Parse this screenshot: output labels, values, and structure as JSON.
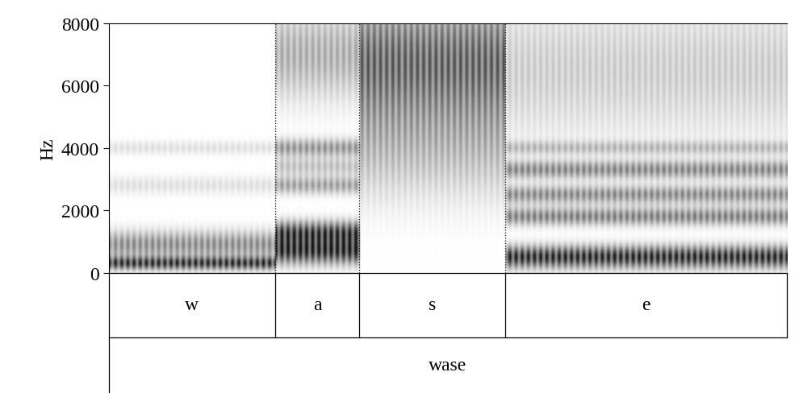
{
  "chart_data": {
    "type": "spectrogram",
    "ylabel": "Hz",
    "ylim": [
      0,
      8000
    ],
    "yticks": [
      0,
      2000,
      4000,
      6000,
      8000
    ],
    "tick_labels": "y",
    "segments": [
      {
        "label": "w",
        "start": 0.0,
        "end": 0.2456,
        "bands": [
          [
            300,
            150,
            0.9
          ],
          [
            900,
            300,
            0.55
          ],
          [
            2800,
            200,
            0.15
          ],
          [
            4000,
            150,
            0.15
          ]
        ]
      },
      {
        "label": "a",
        "start": 0.2456,
        "end": 0.3696,
        "bands": [
          [
            700,
            300,
            1.0
          ],
          [
            1300,
            250,
            0.85
          ],
          [
            2800,
            200,
            0.45
          ],
          [
            3400,
            200,
            0.3
          ],
          [
            4000,
            200,
            0.5
          ],
          [
            7000,
            1000,
            0.4
          ]
        ]
      },
      {
        "label": "s",
        "start": 0.3696,
        "end": 0.5848,
        "bands": [
          [
            6800,
            1400,
            0.75
          ],
          [
            4000,
            1200,
            0.3
          ]
        ]
      },
      {
        "label": "e",
        "start": 0.5848,
        "end": 1.0,
        "bands": [
          [
            500,
            250,
            1.0
          ],
          [
            1800,
            200,
            0.6
          ],
          [
            2500,
            200,
            0.55
          ],
          [
            3300,
            200,
            0.55
          ],
          [
            4000,
            150,
            0.3
          ],
          [
            6500,
            1500,
            0.25
          ]
        ]
      }
    ],
    "word": {
      "label": "wase",
      "start": 0.0,
      "end": 1.0
    }
  }
}
